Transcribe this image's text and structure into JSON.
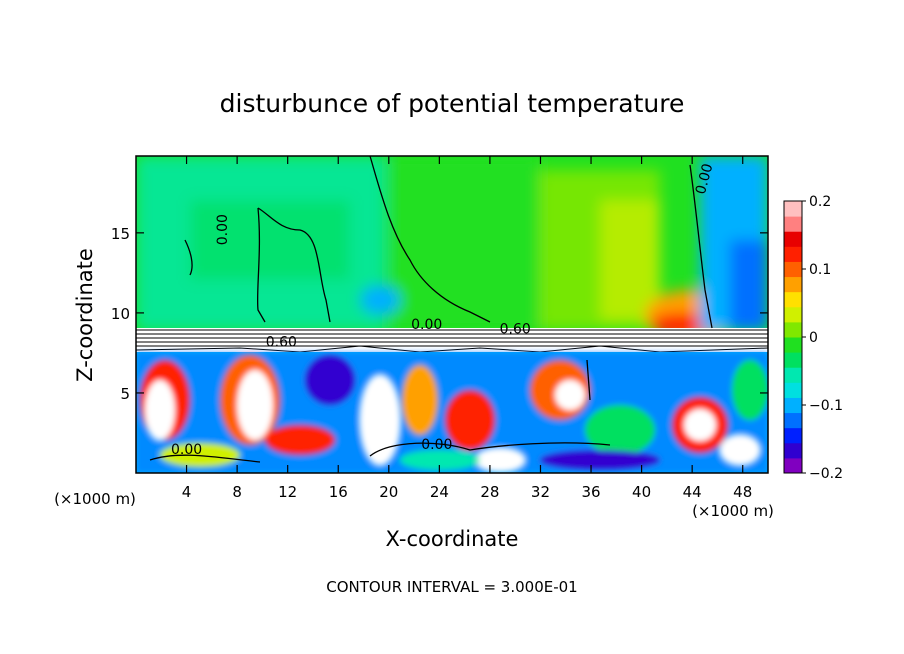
{
  "chart_data": {
    "type": "heatmap",
    "title": "disturbunce of potential temperature",
    "xlabel": "X-coordinate",
    "ylabel": "Z-coordinate",
    "x_unit": "(×1000 m)",
    "x_unit_right": "(×1000 m)",
    "xlim": [
      0,
      50
    ],
    "ylim": [
      0,
      19.8
    ],
    "x_ticks": [
      4,
      8,
      12,
      16,
      20,
      24,
      28,
      32,
      36,
      40,
      44,
      48
    ],
    "y_ticks": [
      5,
      10,
      15
    ],
    "colorbar": {
      "range": [
        -0.2,
        0.2
      ],
      "tick_labels": [
        "0.2",
        "0.1",
        "0",
        "−0.1",
        "−0.2"
      ],
      "tick_values": [
        0.2,
        0.1,
        0,
        -0.1,
        -0.2
      ],
      "colors": [
        "#8000c0",
        "#3000d0",
        "#0020ff",
        "#0070ff",
        "#00b0ff",
        "#00e0e0",
        "#00e8b0",
        "#00e060",
        "#20e020",
        "#80e800",
        "#d0f000",
        "#ffe000",
        "#ffa000",
        "#ff6000",
        "#ff2000",
        "#e80000",
        "#ff8080",
        "#ffc0c0"
      ]
    },
    "contour_labels": [
      {
        "text": "0.00",
        "x": 7.2,
        "z": 15.2,
        "rotate": -90
      },
      {
        "text": "0.00",
        "x": 45.3,
        "z": 18.3,
        "rotate": -75
      },
      {
        "text": "0.00",
        "x": 23.0,
        "z": 9.0,
        "rotate": 0
      },
      {
        "text": "0.60",
        "x": 30.0,
        "z": 8.7,
        "rotate": 0
      },
      {
        "text": "0.60",
        "x": 11.5,
        "z": 7.9,
        "rotate": 0
      },
      {
        "text": "0.00",
        "x": 4.0,
        "z": 1.2,
        "rotate": 0
      },
      {
        "text": "0.00",
        "x": 23.8,
        "z": 1.5,
        "rotate": 0
      }
    ],
    "annotation": "CONTOUR INTERVAL = 3.000E-01"
  }
}
